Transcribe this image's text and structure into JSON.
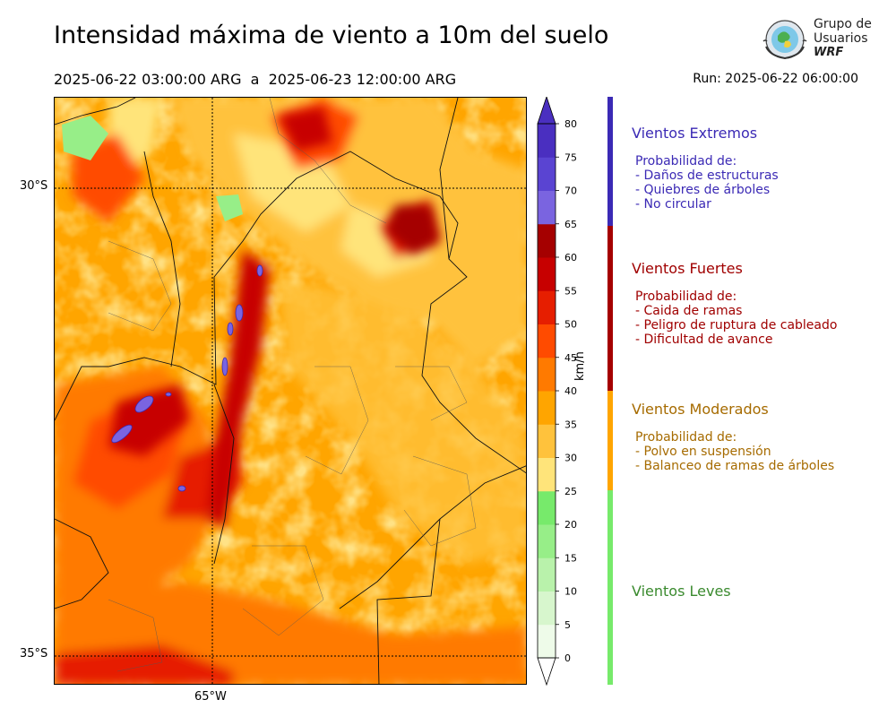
{
  "header": {
    "title": "Intensidad máxima de viento a 10m del suelo",
    "period": "2025-06-22 03:00:00 ARG  a  2025-06-23 12:00:00 ARG",
    "run": "Run: 2025-06-22 06:00:00"
  },
  "logo": {
    "line1": "Grupo de",
    "line2": "Usuarios",
    "line3": "WRF"
  },
  "map": {
    "lat_labels": [
      "30°S",
      "35°S"
    ],
    "lon_labels": [
      "65°W"
    ]
  },
  "colorbar": {
    "unit": "km/h",
    "ticks": [
      "0",
      "5",
      "10",
      "15",
      "20",
      "25",
      "30",
      "35",
      "40",
      "45",
      "50",
      "55",
      "60",
      "65",
      "70",
      "75",
      "80"
    ],
    "colors": [
      "#eefbe9",
      "#d7f6cd",
      "#b9f2ab",
      "#97ee88",
      "#77ea6b",
      "#ffe47a",
      "#ffc23c",
      "#ffa500",
      "#ff7a00",
      "#ff4b00",
      "#e61e00",
      "#c70000",
      "#a50000",
      "#7a64e0",
      "#5a44d2",
      "#4a2fc0"
    ]
  },
  "categories": [
    {
      "title": "Vientos Extremos",
      "color": "#3b2ab5",
      "desc": "Probabilidad de:\n- Daños de estructuras\n- Quiebres de árboles\n- No circular"
    },
    {
      "title": "Vientos Fuertes",
      "color": "#a00000",
      "desc": "Probabilidad de:\n- Caida de ramas\n- Peligro de ruptura de cableado\n- Dificultad de avance"
    },
    {
      "title": "Vientos Moderados",
      "color": "#a66b00",
      "desc": "Probabilidad de:\n- Polvo en suspensión\n- Balanceo de ramas de árboles"
    },
    {
      "title": "Vientos Leves",
      "color": "#3a8a2e",
      "desc": ""
    }
  ],
  "category_bar_colors": [
    "#3b2ab5",
    "#a50000",
    "#ffa500",
    "#77ea6b"
  ]
}
